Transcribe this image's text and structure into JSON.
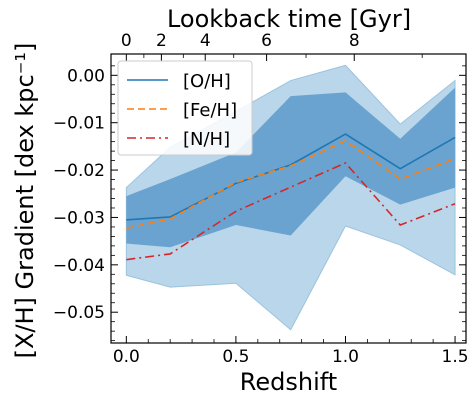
{
  "chart_data": {
    "type": "line",
    "xlabel": "Redshift",
    "ylabel": "[X/H] Gradient [dex kpc⁻¹]",
    "top_xlabel": "Lookback time [Gyr]",
    "xlim": [
      -0.07,
      1.55
    ],
    "ylim": [
      -0.0565,
      0.0045
    ],
    "xticks": [
      0.0,
      0.5,
      1.0,
      1.5
    ],
    "xtick_labels": [
      "0.0",
      "0.5",
      "1.0",
      "1.5"
    ],
    "yticks": [
      -0.05,
      -0.04,
      -0.03,
      -0.02,
      -0.01,
      0.0
    ],
    "ytick_labels": [
      "−0.05",
      "−0.04",
      "−0.03",
      "−0.02",
      "−0.01",
      "0.00"
    ],
    "top_ticks": [
      {
        "label": "0",
        "z": 0.0
      },
      {
        "label": "2",
        "z": 0.16
      },
      {
        "label": "4",
        "z": 0.36
      },
      {
        "label": "6",
        "z": 0.64
      },
      {
        "label": "8",
        "z": 1.04
      }
    ],
    "x": [
      0.0,
      0.2,
      0.5,
      0.75,
      1.0,
      1.25,
      1.5
    ],
    "series": [
      {
        "name": "[O/H]",
        "values": [
          -0.0305,
          -0.0299,
          -0.0228,
          -0.0189,
          -0.0124,
          -0.0197,
          -0.0131
        ],
        "color": "#1f77b4",
        "dash": "solid"
      },
      {
        "name": "[Fe/H]",
        "values": [
          -0.0323,
          -0.0303,
          -0.0226,
          -0.0191,
          -0.0138,
          -0.0219,
          -0.0176
        ],
        "color": "#ff7f0e",
        "dash": "dashed"
      },
      {
        "name": "[N/H]",
        "values": [
          -0.0389,
          -0.0377,
          -0.0287,
          -0.0236,
          -0.0185,
          -0.0316,
          -0.0271
        ],
        "color": "#d62728",
        "dash": "dashdot"
      }
    ],
    "bands": [
      {
        "lower": [
          -0.0422,
          -0.0447,
          -0.0439,
          -0.0537,
          -0.0318,
          -0.0358,
          -0.0421
        ],
        "upper": [
          -0.0237,
          -0.0152,
          -0.0076,
          -0.0011,
          0.0021,
          -0.0103,
          -0.0011
        ],
        "color": "#b9d6ea"
      },
      {
        "lower": [
          -0.0355,
          -0.0363,
          -0.0316,
          -0.0338,
          -0.0213,
          -0.0273,
          -0.0237
        ],
        "upper": [
          -0.0255,
          -0.0219,
          -0.0163,
          -0.0044,
          -0.0036,
          -0.0134,
          -0.0026
        ],
        "color": "#6aa3d0"
      }
    ],
    "legend_position": "top-left",
    "grid": false
  }
}
